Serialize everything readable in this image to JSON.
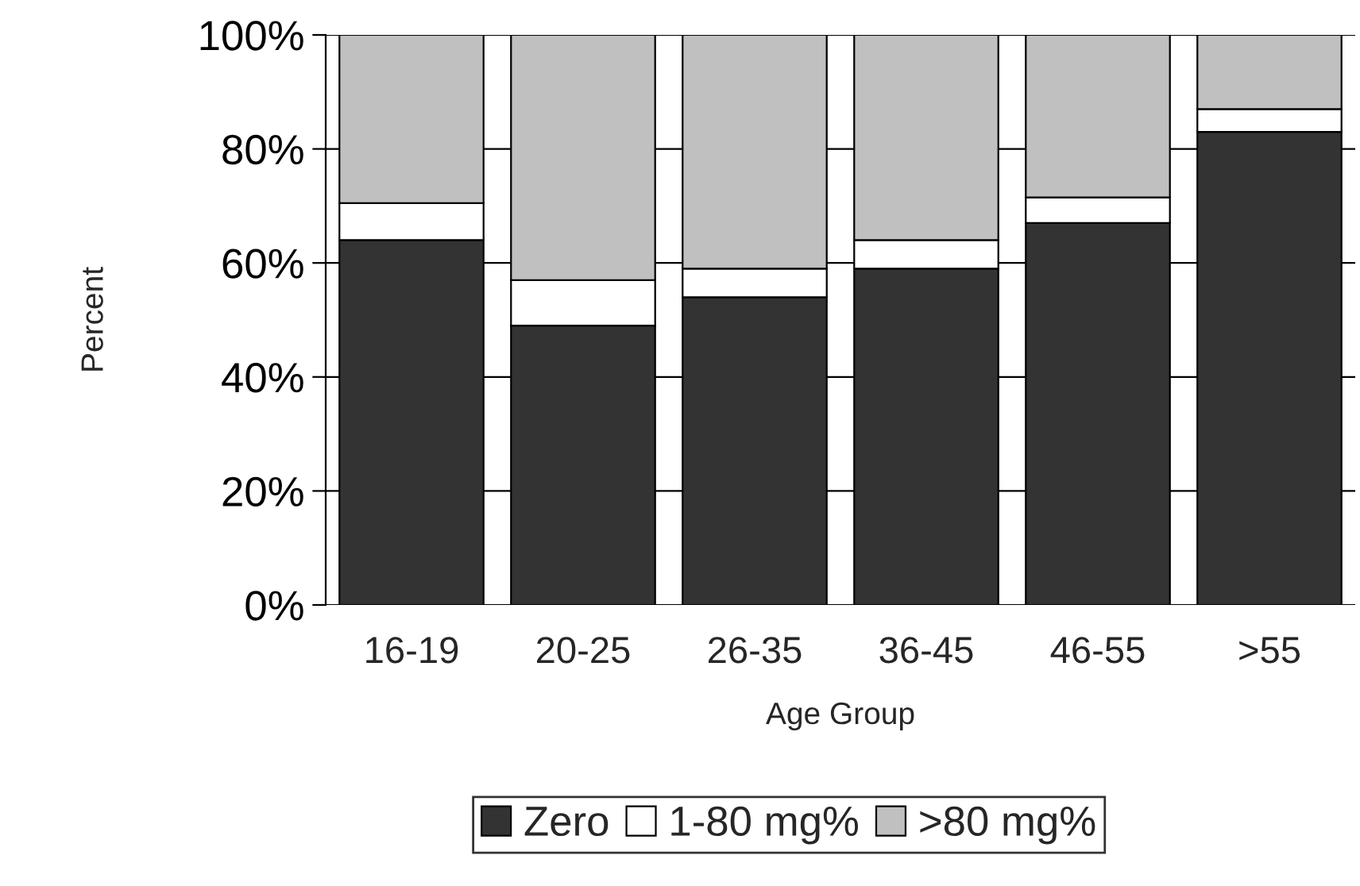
{
  "chart_data": {
    "type": "bar",
    "stacked": true,
    "xlabel": "Age Group",
    "ylabel": "Percent",
    "categories": [
      "16-19",
      "20-25",
      "26-35",
      "36-45",
      "46-55",
      ">55"
    ],
    "series": [
      {
        "name": "Zero",
        "color": "#333333",
        "values": [
          64,
          49,
          54,
          59,
          67,
          83
        ]
      },
      {
        "name": "1-80 mg%",
        "color": "#ffffff",
        "values": [
          6.5,
          8,
          5,
          5,
          4.5,
          4
        ]
      },
      {
        "name": ">80 mg%",
        "color": "#c0c0c0",
        "values": [
          29.5,
          43,
          41,
          36,
          28.5,
          13
        ]
      }
    ],
    "ylim": [
      0,
      100
    ],
    "yticks": [
      {
        "value": 0,
        "label": "0%"
      },
      {
        "value": 20,
        "label": "20%"
      },
      {
        "value": 40,
        "label": "40%"
      },
      {
        "value": 60,
        "label": "60%"
      },
      {
        "value": 80,
        "label": "80%"
      },
      {
        "value": 100,
        "label": "100%"
      }
    ],
    "grid": "y",
    "legend": "bottom"
  }
}
